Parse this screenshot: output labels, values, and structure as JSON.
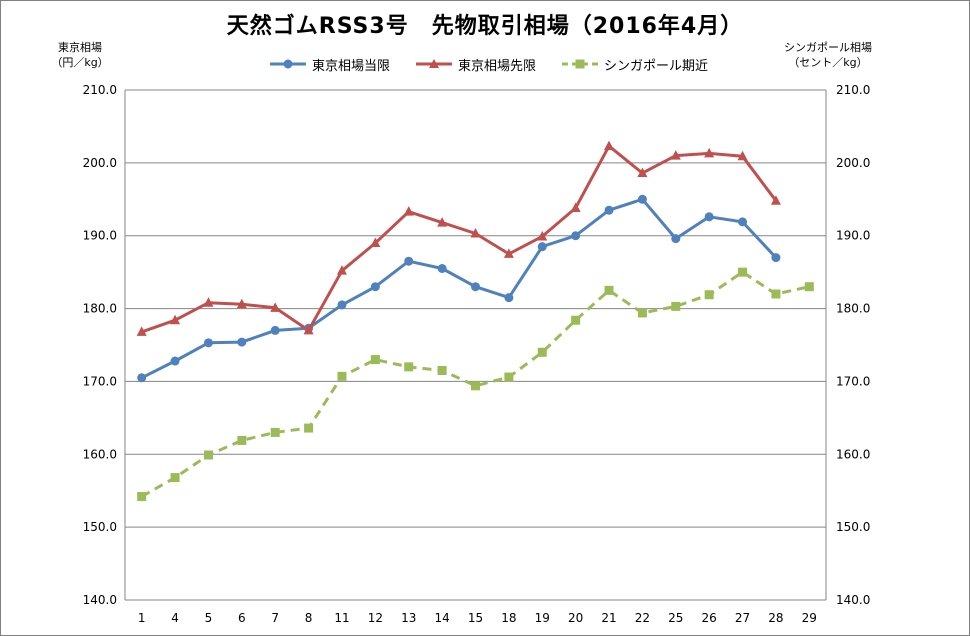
{
  "title": "天然ゴムRSS3号　先物取引相場（2016年4月）",
  "left_axis_title": "東京相場\n（円／kg）",
  "right_axis_title": "シンガポール相場\n（セント／kg）",
  "chart_data": {
    "type": "line",
    "title": "天然ゴムRSS3号　先物取引相場（2016年4月）",
    "categories": [
      "1",
      "4",
      "5",
      "6",
      "7",
      "8",
      "11",
      "12",
      "13",
      "14",
      "15",
      "18",
      "19",
      "20",
      "21",
      "22",
      "25",
      "26",
      "27",
      "28",
      "29"
    ],
    "ylim": [
      140,
      210
    ],
    "y2lim": [
      140,
      210
    ],
    "yticks": [
      "140.0",
      "150.0",
      "160.0",
      "170.0",
      "180.0",
      "190.0",
      "200.0",
      "210.0"
    ],
    "y2ticks": [
      "140.0",
      "150.0",
      "160.0",
      "170.0",
      "180.0",
      "190.0",
      "200.0",
      "210.0"
    ],
    "ylabel": "東京相場（円／kg）",
    "y2label": "シンガポール相場（セント／kg）",
    "grid": true,
    "legend": "top",
    "series": [
      {
        "name": "東京相場当限",
        "axis": "left",
        "color": "#4f81bd",
        "marker": "circle",
        "dash": false,
        "values": [
          170.5,
          172.8,
          175.3,
          175.4,
          177.0,
          177.3,
          180.5,
          183.0,
          186.5,
          185.5,
          183.0,
          181.5,
          188.5,
          190.0,
          193.5,
          195.0,
          189.6,
          192.6,
          191.9,
          187.0,
          null
        ]
      },
      {
        "name": "東京相場先限",
        "axis": "left",
        "color": "#c0504d",
        "marker": "triangle",
        "dash": false,
        "values": [
          176.8,
          178.4,
          180.8,
          180.6,
          180.1,
          177.0,
          185.2,
          189.0,
          193.3,
          191.8,
          190.3,
          187.5,
          189.9,
          193.8,
          202.3,
          198.6,
          201.0,
          201.3,
          200.9,
          194.8,
          null
        ]
      },
      {
        "name": "シンガポール期近",
        "axis": "right",
        "color": "#9bbb59",
        "marker": "square",
        "dash": true,
        "values": [
          154.2,
          156.8,
          159.9,
          161.9,
          163.0,
          163.6,
          170.7,
          173.0,
          172.0,
          171.5,
          169.4,
          170.6,
          174.0,
          178.4,
          182.5,
          179.4,
          180.3,
          181.9,
          185.0,
          182.0,
          183.0
        ]
      }
    ]
  }
}
